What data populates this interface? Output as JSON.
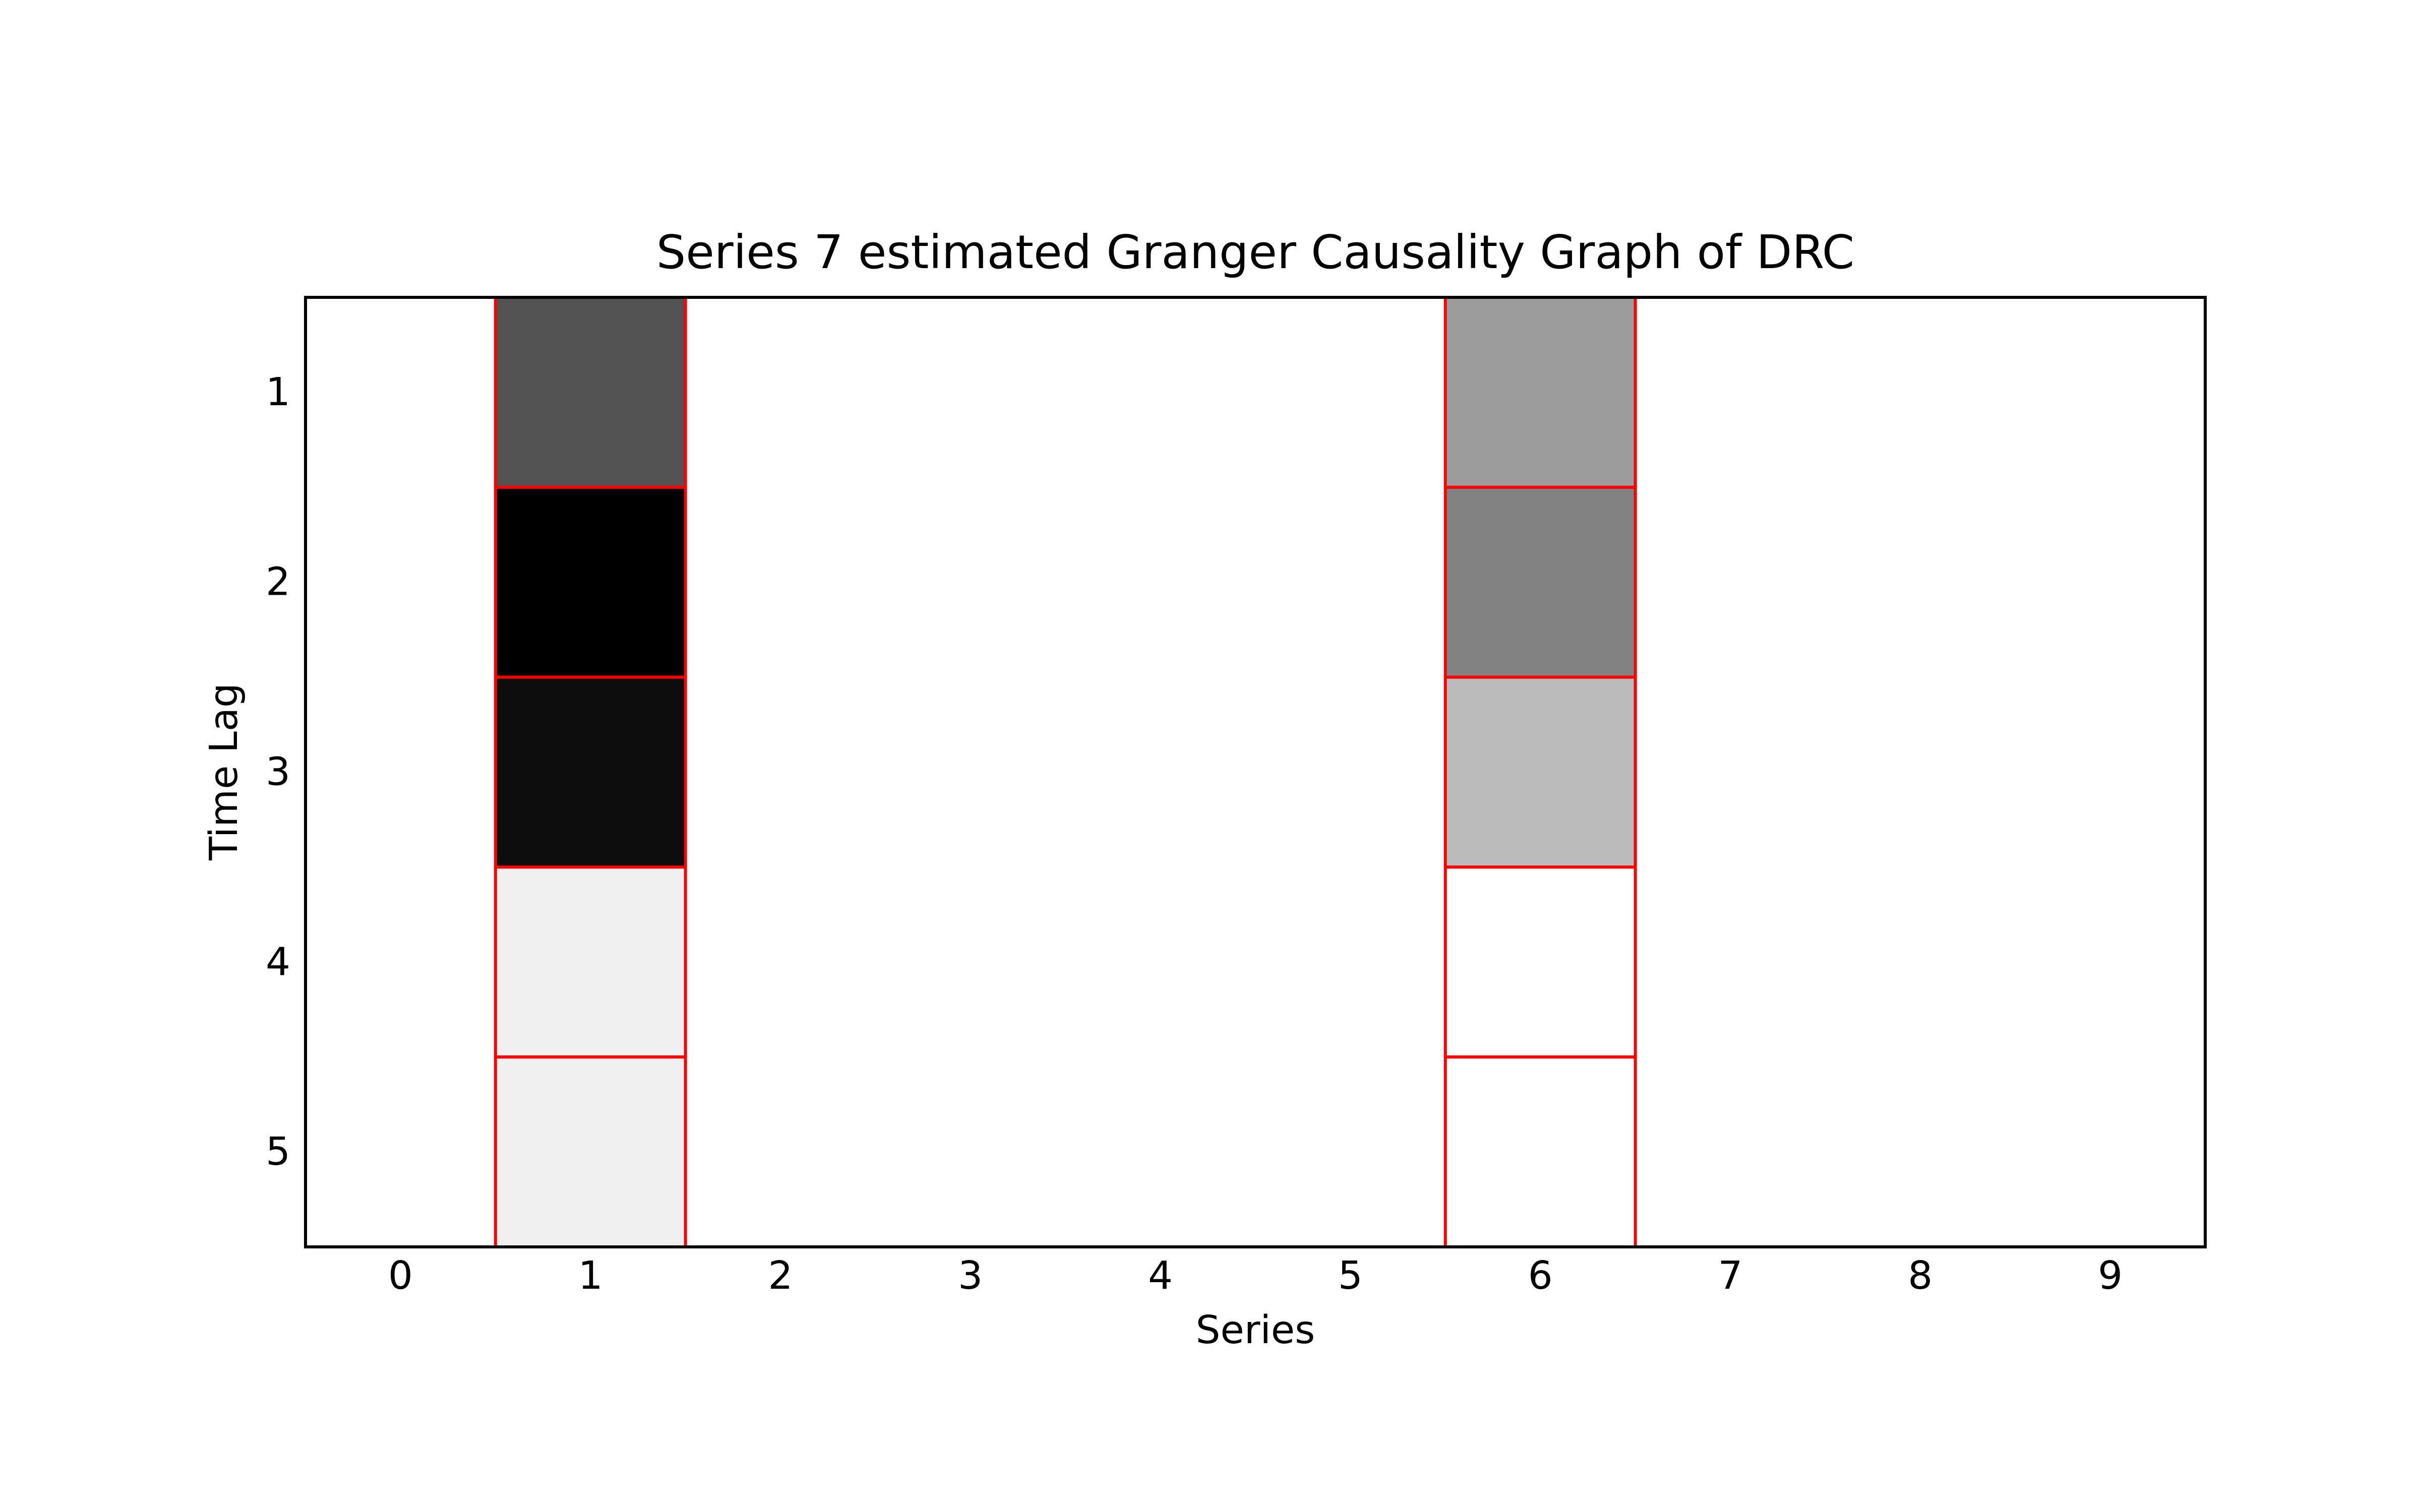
{
  "chart_data": {
    "type": "heatmap",
    "title": "Series 7 estimated Granger Causality Graph of DRC",
    "xlabel": "Series",
    "ylabel": "Time Lag",
    "x_categories": [
      "0",
      "1",
      "2",
      "3",
      "4",
      "5",
      "6",
      "7",
      "8",
      "9"
    ],
    "y_categories": [
      "1",
      "2",
      "3",
      "4",
      "5"
    ],
    "colormap": "grayscale (darker = higher)",
    "values": [
      [
        0,
        0.68,
        0,
        0,
        0,
        0,
        0.39,
        0,
        0,
        0
      ],
      [
        0,
        1.0,
        0,
        0,
        0,
        0,
        0.49,
        0,
        0,
        0
      ],
      [
        0,
        0.95,
        0,
        0,
        0,
        0,
        0.27,
        0,
        0,
        0
      ],
      [
        0,
        0.06,
        0,
        0,
        0,
        0,
        0,
        0,
        0,
        0
      ],
      [
        0,
        0.06,
        0,
        0,
        0,
        0,
        0,
        0,
        0,
        0
      ]
    ],
    "highlighted_columns": [
      1,
      6
    ],
    "highlight_color": "#ff0000",
    "grid": false
  }
}
